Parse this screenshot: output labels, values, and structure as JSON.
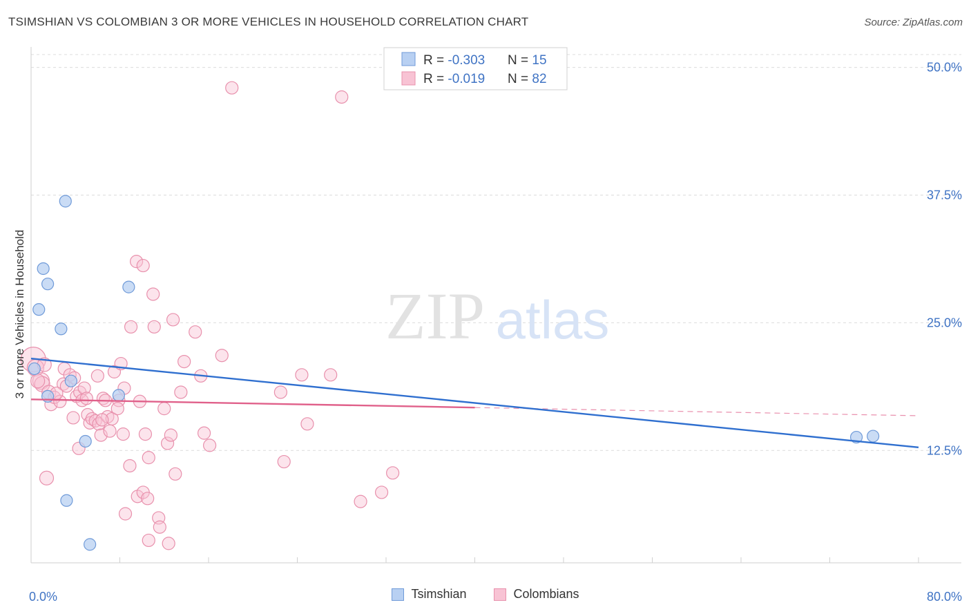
{
  "header": {
    "title": "TSIMSHIAN VS COLOMBIAN 3 OR MORE VEHICLES IN HOUSEHOLD CORRELATION CHART",
    "source": "Source: ZipAtlas.com"
  },
  "watermark": {
    "zip": "ZIP",
    "atlas": "atlas"
  },
  "colors": {
    "tsimshian_fill": "#b8d0f2",
    "tsimshian_stroke": "#6f9ad8",
    "tsimshian_line": "#2f6fcf",
    "colombian_fill": "#f8c3d4",
    "colombian_stroke": "#e890ac",
    "colombian_line": "#e0608a",
    "axis_text": "#3f73c4",
    "grid": "#dcdcdc"
  },
  "legend_top": {
    "rows": [
      {
        "r_label": "R = ",
        "r_value": "-0.303",
        "n_label": "N = ",
        "n_value": "15"
      },
      {
        "r_label": "R = ",
        "r_value": "-0.019",
        "n_label": "N = ",
        "n_value": "82"
      }
    ]
  },
  "legend_bottom": [
    "Tsimshian",
    "Colombians"
  ],
  "chart_data": {
    "type": "scatter",
    "title": "TSIMSHIAN VS COLOMBIAN 3 OR MORE VEHICLES IN HOUSEHOLD CORRELATION CHART",
    "xlabel": "",
    "ylabel": "3 or more Vehicles in Household",
    "xlim": [
      0,
      80
    ],
    "ylim": [
      1.5,
      52
    ],
    "x_tick_labels": [
      "0.0%",
      "80.0%"
    ],
    "y_ticks": [
      12.5,
      25.0,
      37.5,
      50.0
    ],
    "y_tick_labels": [
      "12.5%",
      "25.0%",
      "37.5%",
      "50.0%"
    ],
    "grid": true,
    "legend_position": "top-center",
    "series": [
      {
        "name": "Tsimshian",
        "r": -0.303,
        "n": 15,
        "trend": {
          "x0": 0,
          "y0": 21.5,
          "x1": 80,
          "y1": 12.8
        },
        "points": [
          [
            0.3,
            20.5
          ],
          [
            1.1,
            30.3
          ],
          [
            1.5,
            28.8
          ],
          [
            0.7,
            26.3
          ],
          [
            2.7,
            24.4
          ],
          [
            3.1,
            36.9
          ],
          [
            8.8,
            28.5
          ],
          [
            1.5,
            17.8
          ],
          [
            3.6,
            19.3
          ],
          [
            7.9,
            17.9
          ],
          [
            4.9,
            13.4
          ],
          [
            3.2,
            7.6
          ],
          [
            5.3,
            3.3
          ],
          [
            74.4,
            13.8
          ],
          [
            75.9,
            13.9
          ]
        ]
      },
      {
        "name": "Colombians",
        "r": -0.019,
        "n": 82,
        "trend": {
          "x0": 0,
          "y0": 17.5,
          "x1": 40,
          "y1": 16.7,
          "dash_x1": 80,
          "dash_y1": 15.9
        },
        "points": [
          [
            0.2,
            21.4,
            18
          ],
          [
            0.4,
            20.6,
            12
          ],
          [
            0.9,
            19.3,
            12
          ],
          [
            1.0,
            19.0,
            11
          ],
          [
            1.6,
            18.2,
            10
          ],
          [
            1.8,
            17.0,
            9
          ],
          [
            2.1,
            17.7,
            9
          ],
          [
            2.6,
            17.3,
            9
          ],
          [
            2.9,
            19.0,
            9
          ],
          [
            3.0,
            20.5,
            9
          ],
          [
            3.2,
            18.8,
            9
          ],
          [
            3.5,
            19.9,
            9
          ],
          [
            3.8,
            15.7,
            9
          ],
          [
            4.1,
            17.8,
            9
          ],
          [
            4.4,
            18.2,
            9
          ],
          [
            4.6,
            17.4,
            9
          ],
          [
            4.8,
            18.6,
            9
          ],
          [
            5.1,
            16.0,
            9
          ],
          [
            5.3,
            15.2,
            9
          ],
          [
            5.5,
            15.6,
            9
          ],
          [
            5.8,
            15.4,
            9
          ],
          [
            6.0,
            19.8,
            9
          ],
          [
            6.1,
            15.1,
            9
          ],
          [
            6.3,
            14.0,
            9
          ],
          [
            6.5,
            17.6,
            9
          ],
          [
            6.7,
            17.4,
            9
          ],
          [
            6.9,
            15.8,
            9
          ],
          [
            7.1,
            14.4,
            9
          ],
          [
            7.3,
            15.6,
            9
          ],
          [
            7.5,
            20.2,
            9
          ],
          [
            7.9,
            17.4,
            9
          ],
          [
            8.1,
            21.0,
            9
          ],
          [
            8.3,
            14.1,
            9
          ],
          [
            8.4,
            18.6,
            9
          ],
          [
            8.9,
            11.0,
            9
          ],
          [
            9.0,
            24.6,
            9
          ],
          [
            9.5,
            31.0,
            9
          ],
          [
            9.8,
            17.3,
            9
          ],
          [
            10.1,
            30.6,
            9
          ],
          [
            10.3,
            14.1,
            9
          ],
          [
            10.6,
            11.8,
            9
          ],
          [
            11.0,
            27.8,
            9
          ],
          [
            11.1,
            24.6,
            9
          ],
          [
            11.5,
            5.9,
            9
          ],
          [
            11.6,
            5.0,
            9
          ],
          [
            12.0,
            16.6,
            9
          ],
          [
            12.3,
            13.2,
            9
          ],
          [
            12.6,
            14.0,
            9
          ],
          [
            12.8,
            25.3,
            9
          ],
          [
            13.0,
            10.2,
            9
          ],
          [
            13.5,
            18.2,
            9
          ],
          [
            13.8,
            21.2,
            9
          ],
          [
            14.8,
            24.1,
            9
          ],
          [
            15.3,
            19.8,
            9
          ],
          [
            15.6,
            14.2,
            9
          ],
          [
            16.1,
            13.0,
            9
          ],
          [
            17.2,
            21.8,
            9
          ],
          [
            18.1,
            48.0,
            9
          ],
          [
            10.6,
            3.7,
            9
          ],
          [
            12.4,
            3.4,
            9
          ],
          [
            8.5,
            6.3,
            9
          ],
          [
            9.6,
            8.0,
            9
          ],
          [
            10.1,
            8.4,
            9
          ],
          [
            10.5,
            7.8,
            9
          ],
          [
            22.5,
            18.2,
            9
          ],
          [
            22.8,
            11.4,
            9
          ],
          [
            24.4,
            19.9,
            9
          ],
          [
            24.9,
            15.1,
            9
          ],
          [
            27.0,
            19.9,
            9
          ],
          [
            28.0,
            47.1,
            9
          ],
          [
            29.7,
            7.5,
            9
          ],
          [
            31.6,
            8.4,
            9
          ],
          [
            32.6,
            10.3,
            9
          ],
          [
            1.4,
            9.8,
            10
          ],
          [
            4.3,
            12.7,
            9
          ],
          [
            2.3,
            18.1,
            9
          ],
          [
            5.0,
            17.6,
            9
          ],
          [
            6.4,
            15.5,
            9
          ],
          [
            7.8,
            16.6,
            9
          ],
          [
            3.9,
            19.6,
            9
          ],
          [
            1.2,
            20.9,
            10
          ],
          [
            0.6,
            19.3,
            10
          ]
        ]
      }
    ]
  }
}
